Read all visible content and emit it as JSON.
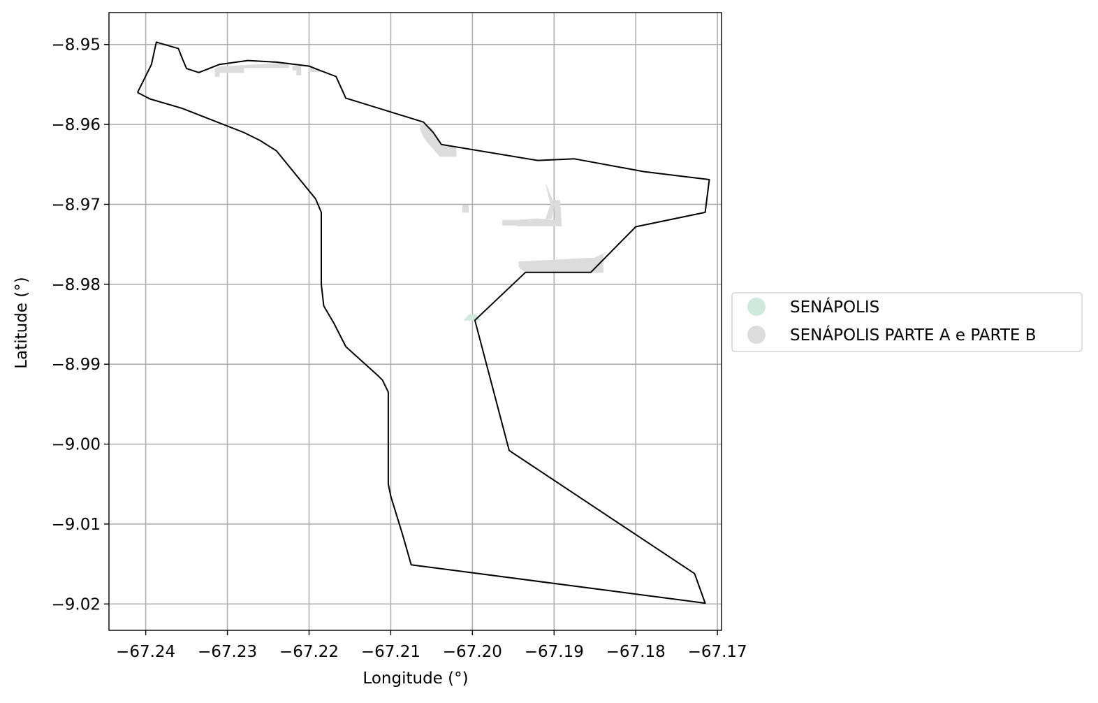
{
  "chart_data": {
    "type": "map",
    "xlabel": "Longitude (°)",
    "ylabel": "Latitude (°)",
    "xlim": [
      -67.2445,
      -67.1695
    ],
    "ylim": [
      -9.0233,
      -8.946
    ],
    "grid": true,
    "x_ticks": [
      {
        "value": -67.24,
        "label": "−67.24"
      },
      {
        "value": -67.23,
        "label": "−67.23"
      },
      {
        "value": -67.22,
        "label": "−67.22"
      },
      {
        "value": -67.21,
        "label": "−67.21"
      },
      {
        "value": -67.2,
        "label": "−67.20"
      },
      {
        "value": -67.19,
        "label": "−67.19"
      },
      {
        "value": -67.18,
        "label": "−67.18"
      },
      {
        "value": -67.17,
        "label": "−67.17"
      }
    ],
    "y_ticks": [
      {
        "value": -8.95,
        "label": "−8.95"
      },
      {
        "value": -8.96,
        "label": "−8.96"
      },
      {
        "value": -8.97,
        "label": "−8.97"
      },
      {
        "value": -8.98,
        "label": "−8.98"
      },
      {
        "value": -8.99,
        "label": "−8.99"
      },
      {
        "value": -9.0,
        "label": "−9.00"
      },
      {
        "value": -9.01,
        "label": "−9.01"
      },
      {
        "value": -9.02,
        "label": "−9.02"
      }
    ],
    "legend_position": "center-right outside",
    "legend": [
      {
        "label": "SENÁPOLIS",
        "color": "#cfeadd"
      },
      {
        "label": "SENÁPOLIS PARTE A e PARTE B",
        "color": "#dcdcdc"
      }
    ],
    "boundary": {
      "stroke": "#000000",
      "coords": [
        [
          -67.241,
          -8.956
        ],
        [
          -67.2393,
          -8.9525
        ],
        [
          -67.2387,
          -8.9497
        ],
        [
          -67.236,
          -8.9505
        ],
        [
          -67.2355,
          -8.9518
        ],
        [
          -67.235,
          -8.953
        ],
        [
          -67.2335,
          -8.9535
        ],
        [
          -67.231,
          -8.9525
        ],
        [
          -67.2275,
          -8.952
        ],
        [
          -67.224,
          -8.9522
        ],
        [
          -67.22,
          -8.9527
        ],
        [
          -67.2185,
          -8.9533
        ],
        [
          -67.2167,
          -8.954
        ],
        [
          -67.2155,
          -8.9567
        ],
        [
          -67.206,
          -8.9597
        ],
        [
          -67.2048,
          -8.961
        ],
        [
          -67.2038,
          -8.9625
        ],
        [
          -67.192,
          -8.9645
        ],
        [
          -67.1875,
          -8.9643
        ],
        [
          -67.179,
          -8.9659
        ],
        [
          -67.171,
          -8.9669
        ],
        [
          -67.1715,
          -8.971
        ],
        [
          -67.18,
          -8.9728
        ],
        [
          -67.1855,
          -8.9785
        ],
        [
          -67.1935,
          -8.9785
        ],
        [
          -67.1997,
          -8.9845
        ],
        [
          -67.1955,
          -9.0008
        ],
        [
          -67.1728,
          -9.0162
        ],
        [
          -67.1715,
          -9.0199
        ],
        [
          -67.2075,
          -9.0151
        ],
        [
          -67.2085,
          -9.0115
        ],
        [
          -67.21,
          -9.0065
        ],
        [
          -67.2103,
          -9.005
        ],
        [
          -67.2103,
          -8.9935
        ],
        [
          -67.211,
          -8.992
        ],
        [
          -67.2115,
          -8.9915
        ],
        [
          -67.2155,
          -8.9878
        ],
        [
          -67.217,
          -8.9848
        ],
        [
          -67.2182,
          -8.9827
        ],
        [
          -67.2185,
          -8.98
        ],
        [
          -67.2185,
          -8.971
        ],
        [
          -67.2192,
          -8.9693
        ],
        [
          -67.224,
          -8.9633
        ],
        [
          -67.226,
          -8.962
        ],
        [
          -67.228,
          -8.961
        ],
        [
          -67.233,
          -8.959
        ],
        [
          -67.2355,
          -8.958
        ],
        [
          -67.2395,
          -8.9568
        ],
        [
          -67.241,
          -8.956
        ]
      ]
    },
    "areas": [
      {
        "name": "SENÁPOLIS",
        "color": "#cfeadd",
        "polygons": [
          [
            [
              -67.201,
              -8.9845
            ],
            [
              -67.199,
              -8.9845
            ],
            [
              -67.1996,
              -8.9838
            ],
            [
              -67.2004,
              -8.9838
            ]
          ]
        ]
      },
      {
        "name": "SENÁPOLIS PARTE A e PARTE B",
        "color": "#dcdcdc",
        "polygons": [
          [
            [
              -67.231,
              -8.9528
            ],
            [
              -67.2225,
              -8.9523
            ],
            [
              -67.2225,
              -8.9529
            ],
            [
              -67.228,
              -8.9529
            ],
            [
              -67.228,
              -8.9535
            ],
            [
              -67.231,
              -8.9535
            ],
            [
              -67.231,
              -8.954
            ],
            [
              -67.2315,
              -8.954
            ],
            [
              -67.2315,
              -8.953
            ]
          ],
          [
            [
              -67.22,
              -8.9527
            ],
            [
              -67.218,
              -8.9534
            ],
            [
              -67.22,
              -8.9534
            ]
          ],
          [
            [
              -67.224,
              -8.9523
            ],
            [
              -67.2225,
              -8.9523
            ],
            [
              -67.2225,
              -8.9528
            ],
            [
              -67.224,
              -8.9528
            ]
          ],
          [
            [
              -67.222,
              -8.9527
            ],
            [
              -67.221,
              -8.9527
            ],
            [
              -67.221,
              -8.9538
            ],
            [
              -67.2215,
              -8.9538
            ],
            [
              -67.2215,
              -8.9532
            ],
            [
              -67.222,
              -8.9532
            ]
          ],
          [
            [
              -67.2063,
              -8.9598
            ],
            [
              -67.205,
              -8.9605
            ],
            [
              -67.204,
              -8.9625
            ],
            [
              -67.202,
              -8.963
            ],
            [
              -67.202,
              -8.964
            ],
            [
              -67.204,
              -8.964
            ],
            [
              -67.2048,
              -8.963
            ],
            [
              -67.2055,
              -8.9622
            ],
            [
              -67.206,
              -8.9615
            ],
            [
              -67.2064,
              -8.9605
            ]
          ],
          [
            [
              -67.2012,
              -8.9701
            ],
            [
              -67.2005,
              -8.9701
            ],
            [
              -67.2005,
              -8.971
            ],
            [
              -67.2012,
              -8.971
            ]
          ],
          [
            [
              -67.192,
              -8.9718
            ],
            [
              -67.19,
              -8.972
            ],
            [
              -67.19,
              -8.9727
            ],
            [
              -67.1945,
              -8.9727
            ],
            [
              -67.1945,
              -8.972
            ]
          ],
          [
            [
              -67.1963,
              -8.972
            ],
            [
              -67.1945,
              -8.972
            ],
            [
              -67.1945,
              -8.9726
            ],
            [
              -67.1963,
              -8.9726
            ]
          ],
          [
            [
              -67.191,
              -8.9675
            ],
            [
              -67.19,
              -8.97
            ],
            [
              -67.1903,
              -8.9718
            ],
            [
              -67.191,
              -8.9718
            ],
            [
              -67.1904,
              -8.97
            ]
          ],
          [
            [
              -67.19,
              -8.9695
            ],
            [
              -67.1893,
              -8.9695
            ],
            [
              -67.1891,
              -8.9727
            ],
            [
              -67.1898,
              -8.9727
            ]
          ],
          [
            [
              -67.1943,
              -8.9772
            ],
            [
              -67.185,
              -8.9767
            ],
            [
              -67.184,
              -8.9762
            ],
            [
              -67.184,
              -8.9785
            ],
            [
              -67.1935,
              -8.9785
            ],
            [
              -67.1943,
              -8.9778
            ]
          ]
        ]
      }
    ]
  }
}
